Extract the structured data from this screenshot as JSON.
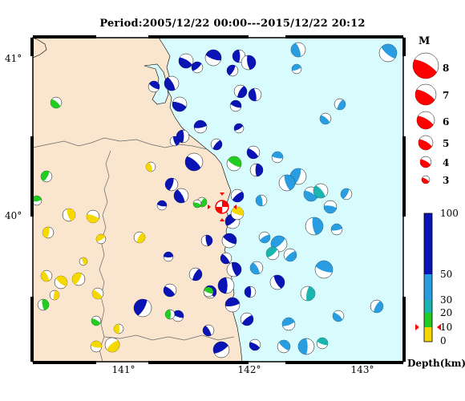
{
  "title": "Period:2005/12/22 00:00---2015/12/22 20:12",
  "lat_labels": [
    "41°",
    "40°"
  ],
  "lon_labels": [
    "141°",
    "142°",
    "143°"
  ],
  "magnitude_legend": {
    "title": "M",
    "levels": [
      "8",
      "7",
      "6",
      "5",
      "4",
      "3"
    ]
  },
  "depth_legend": {
    "title": "Depth(km)",
    "ticks": [
      "100",
      "50",
      "30",
      "20",
      "10",
      "0"
    ],
    "colors": {
      "shallow": "#f5d800",
      "mid_shallow": "#22cc22",
      "mid": "#1ab5b0",
      "mid_deep": "#2a9de0",
      "deep": "#0a14b4"
    }
  },
  "colors": {
    "land": "#fae6cf",
    "sea": "#d8fbfd",
    "beachball_legend": "#ff0000"
  }
}
